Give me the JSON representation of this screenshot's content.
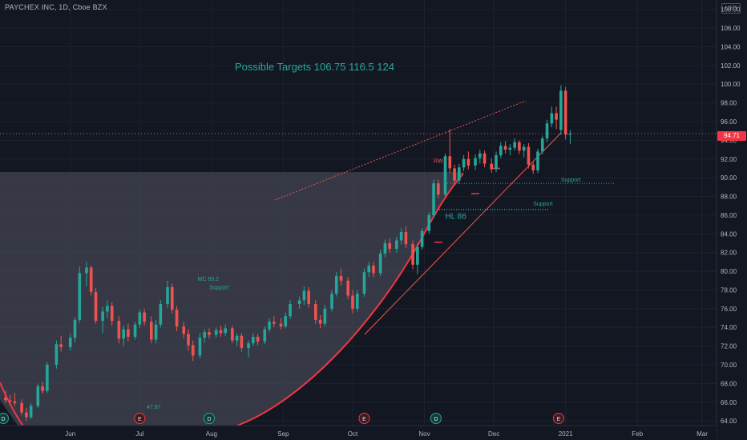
{
  "header": {
    "symbol_line": "PAYCHEX INC, 1D, Cboe BZX",
    "currency_label": "USD"
  },
  "last_price_label": "94.71",
  "colors": {
    "up": "#26a69a",
    "down": "#ef5350",
    "background": "#131722",
    "grid": "#1e222d",
    "shade": "#434651"
  },
  "chart_data": {
    "type": "candlestick",
    "y_axis": {
      "side": "right",
      "range": [
        63.5,
        109
      ],
      "ticks": [
        64,
        66,
        68,
        70,
        72,
        74,
        76,
        78,
        80,
        82,
        84,
        86,
        88,
        90,
        92,
        94,
        96,
        98,
        100,
        102,
        104,
        106,
        108
      ],
      "tick_labels": [
        "64.00",
        "66.00",
        "68.00",
        "70.00",
        "72.00",
        "74.00",
        "76.00",
        "78.00",
        "80.00",
        "82.00",
        "84.00",
        "86.00",
        "88.00",
        "90.00",
        "92.00",
        "94.00",
        "96.00",
        "98.00",
        "100.00",
        "102.00",
        "104.00",
        "106.00",
        "108.00"
      ]
    },
    "x_axis": {
      "labels": [
        {
          "label": "Jun",
          "date": "2020-06-01"
        },
        {
          "label": "Jul",
          "date": "2020-07-01"
        },
        {
          "label": "Aug",
          "date": "2020-08-01"
        },
        {
          "label": "Sep",
          "date": "2020-09-01"
        },
        {
          "label": "Oct",
          "date": "2020-10-01"
        },
        {
          "label": "Nov",
          "date": "2020-11-01"
        },
        {
          "label": "Dec",
          "date": "2020-12-01"
        },
        {
          "label": "2021",
          "date": "2021-01-01"
        },
        {
          "label": "Feb",
          "date": "2021-02-01"
        },
        {
          "label": "Mar",
          "date": "2021-03-01"
        }
      ],
      "range": [
        "2020-05-01",
        "2021-03-12"
      ]
    },
    "last_price": 94.71,
    "candles": [
      {
        "d": "2020-05-01",
        "o": 66.9,
        "h": 67.4,
        "l": 66.2,
        "c": 66.5
      },
      {
        "d": "2020-05-04",
        "o": 66.5,
        "h": 67.2,
        "l": 65.9,
        "c": 66.2
      },
      {
        "d": "2020-05-06",
        "o": 66.2,
        "h": 66.8,
        "l": 65.8,
        "c": 66.1
      },
      {
        "d": "2020-05-08",
        "o": 66.1,
        "h": 67.0,
        "l": 65.6,
        "c": 65.9
      },
      {
        "d": "2020-05-11",
        "o": 65.9,
        "h": 66.3,
        "l": 64.6,
        "c": 64.9
      },
      {
        "d": "2020-05-13",
        "o": 64.9,
        "h": 65.4,
        "l": 64.0,
        "c": 64.4
      },
      {
        "d": "2020-05-15",
        "o": 64.4,
        "h": 65.9,
        "l": 64.2,
        "c": 65.6
      },
      {
        "d": "2020-05-18",
        "o": 65.6,
        "h": 68.0,
        "l": 65.4,
        "c": 67.7
      },
      {
        "d": "2020-05-20",
        "o": 67.7,
        "h": 68.2,
        "l": 66.9,
        "c": 67.2
      },
      {
        "d": "2020-05-22",
        "o": 67.2,
        "h": 70.3,
        "l": 67.0,
        "c": 70.0
      },
      {
        "d": "2020-05-26",
        "o": 70.0,
        "h": 72.6,
        "l": 69.6,
        "c": 72.2
      },
      {
        "d": "2020-05-28",
        "o": 72.2,
        "h": 73.1,
        "l": 71.4,
        "c": 71.9
      },
      {
        "d": "2020-06-01",
        "o": 71.9,
        "h": 73.3,
        "l": 71.5,
        "c": 72.9
      },
      {
        "d": "2020-06-03",
        "o": 72.9,
        "h": 75.1,
        "l": 72.4,
        "c": 74.8
      },
      {
        "d": "2020-06-05",
        "o": 74.8,
        "h": 80.5,
        "l": 74.5,
        "c": 79.8
      },
      {
        "d": "2020-06-08",
        "o": 79.8,
        "h": 81.0,
        "l": 78.4,
        "c": 80.4
      },
      {
        "d": "2020-06-10",
        "o": 80.4,
        "h": 80.6,
        "l": 77.4,
        "c": 77.8
      },
      {
        "d": "2020-06-12",
        "o": 77.8,
        "h": 78.2,
        "l": 74.4,
        "c": 74.7
      },
      {
        "d": "2020-06-15",
        "o": 74.7,
        "h": 76.2,
        "l": 73.4,
        "c": 75.7
      },
      {
        "d": "2020-06-17",
        "o": 75.7,
        "h": 76.9,
        "l": 75.0,
        "c": 76.3
      },
      {
        "d": "2020-06-19",
        "o": 76.3,
        "h": 76.7,
        "l": 74.2,
        "c": 74.7
      },
      {
        "d": "2020-06-22",
        "o": 74.7,
        "h": 75.2,
        "l": 72.3,
        "c": 72.8
      },
      {
        "d": "2020-06-24",
        "o": 72.8,
        "h": 74.2,
        "l": 72.0,
        "c": 73.8
      },
      {
        "d": "2020-06-26",
        "o": 73.8,
        "h": 74.4,
        "l": 72.5,
        "c": 73.0
      },
      {
        "d": "2020-06-29",
        "o": 73.0,
        "h": 74.6,
        "l": 72.7,
        "c": 74.3
      },
      {
        "d": "2020-07-01",
        "o": 74.3,
        "h": 75.9,
        "l": 73.9,
        "c": 75.6
      },
      {
        "d": "2020-07-03",
        "o": 75.6,
        "h": 76.0,
        "l": 74.2,
        "c": 74.6
      },
      {
        "d": "2020-07-06",
        "o": 74.6,
        "h": 75.2,
        "l": 72.3,
        "c": 72.7
      },
      {
        "d": "2020-07-08",
        "o": 72.7,
        "h": 74.8,
        "l": 72.3,
        "c": 74.3
      },
      {
        "d": "2020-07-10",
        "o": 74.3,
        "h": 76.9,
        "l": 74.0,
        "c": 76.5
      },
      {
        "d": "2020-07-13",
        "o": 76.5,
        "h": 79.0,
        "l": 76.1,
        "c": 78.3
      },
      {
        "d": "2020-07-15",
        "o": 78.3,
        "h": 78.7,
        "l": 75.5,
        "c": 75.9
      },
      {
        "d": "2020-07-17",
        "o": 75.9,
        "h": 76.3,
        "l": 73.6,
        "c": 74.1
      },
      {
        "d": "2020-07-20",
        "o": 74.1,
        "h": 74.6,
        "l": 72.8,
        "c": 73.3
      },
      {
        "d": "2020-07-22",
        "o": 73.3,
        "h": 73.8,
        "l": 71.5,
        "c": 72.1
      },
      {
        "d": "2020-07-24",
        "o": 72.1,
        "h": 72.6,
        "l": 70.4,
        "c": 71.0
      },
      {
        "d": "2020-07-27",
        "o": 71.0,
        "h": 73.4,
        "l": 70.7,
        "c": 72.9
      },
      {
        "d": "2020-07-29",
        "o": 72.9,
        "h": 73.8,
        "l": 72.4,
        "c": 73.5
      },
      {
        "d": "2020-07-31",
        "o": 73.5,
        "h": 73.9,
        "l": 72.8,
        "c": 73.2
      },
      {
        "d": "2020-08-03",
        "o": 73.2,
        "h": 74.0,
        "l": 72.9,
        "c": 73.7
      },
      {
        "d": "2020-08-05",
        "o": 73.7,
        "h": 74.2,
        "l": 73.0,
        "c": 73.4
      },
      {
        "d": "2020-08-07",
        "o": 73.4,
        "h": 74.3,
        "l": 73.1,
        "c": 73.9
      },
      {
        "d": "2020-08-10",
        "o": 73.9,
        "h": 74.2,
        "l": 72.3,
        "c": 72.6
      },
      {
        "d": "2020-08-12",
        "o": 72.6,
        "h": 73.4,
        "l": 72.0,
        "c": 73.1
      },
      {
        "d": "2020-08-14",
        "o": 73.1,
        "h": 73.4,
        "l": 71.4,
        "c": 71.8
      },
      {
        "d": "2020-08-17",
        "o": 71.8,
        "h": 72.6,
        "l": 70.8,
        "c": 72.3
      },
      {
        "d": "2020-08-19",
        "o": 72.3,
        "h": 73.4,
        "l": 72.0,
        "c": 73.0
      },
      {
        "d": "2020-08-21",
        "o": 73.0,
        "h": 73.3,
        "l": 72.1,
        "c": 72.5
      },
      {
        "d": "2020-08-24",
        "o": 72.5,
        "h": 74.1,
        "l": 72.2,
        "c": 73.8
      },
      {
        "d": "2020-08-26",
        "o": 73.8,
        "h": 75.0,
        "l": 73.5,
        "c": 74.6
      },
      {
        "d": "2020-08-28",
        "o": 74.6,
        "h": 75.2,
        "l": 74.0,
        "c": 74.4
      },
      {
        "d": "2020-08-31",
        "o": 74.4,
        "h": 75.0,
        "l": 73.8,
        "c": 74.1
      },
      {
        "d": "2020-09-02",
        "o": 74.1,
        "h": 75.6,
        "l": 73.9,
        "c": 75.2
      },
      {
        "d": "2020-09-04",
        "o": 75.2,
        "h": 76.9,
        "l": 74.9,
        "c": 76.5
      },
      {
        "d": "2020-09-08",
        "o": 76.5,
        "h": 77.3,
        "l": 76.0,
        "c": 76.9
      },
      {
        "d": "2020-09-10",
        "o": 76.9,
        "h": 78.4,
        "l": 76.4,
        "c": 77.9
      },
      {
        "d": "2020-09-12",
        "o": 77.9,
        "h": 78.3,
        "l": 76.1,
        "c": 76.5
      },
      {
        "d": "2020-09-15",
        "o": 76.5,
        "h": 76.9,
        "l": 74.4,
        "c": 74.8
      },
      {
        "d": "2020-09-17",
        "o": 74.8,
        "h": 75.3,
        "l": 73.9,
        "c": 74.4
      },
      {
        "d": "2020-09-19",
        "o": 74.4,
        "h": 76.4,
        "l": 74.1,
        "c": 76.0
      },
      {
        "d": "2020-09-22",
        "o": 76.0,
        "h": 78.0,
        "l": 75.7,
        "c": 77.6
      },
      {
        "d": "2020-09-24",
        "o": 77.6,
        "h": 79.9,
        "l": 77.3,
        "c": 79.5
      },
      {
        "d": "2020-09-26",
        "o": 79.5,
        "h": 80.3,
        "l": 78.5,
        "c": 79.0
      },
      {
        "d": "2020-09-29",
        "o": 79.0,
        "h": 79.4,
        "l": 77.0,
        "c": 77.4
      },
      {
        "d": "2020-10-01",
        "o": 77.4,
        "h": 78.0,
        "l": 75.5,
        "c": 76.0
      },
      {
        "d": "2020-10-03",
        "o": 76.0,
        "h": 78.0,
        "l": 75.7,
        "c": 77.6
      },
      {
        "d": "2020-10-06",
        "o": 77.6,
        "h": 80.3,
        "l": 77.3,
        "c": 79.9
      },
      {
        "d": "2020-10-08",
        "o": 79.9,
        "h": 81.0,
        "l": 79.4,
        "c": 80.6
      },
      {
        "d": "2020-10-10",
        "o": 80.6,
        "h": 81.0,
        "l": 79.4,
        "c": 79.8
      },
      {
        "d": "2020-10-13",
        "o": 79.8,
        "h": 82.3,
        "l": 79.5,
        "c": 81.9
      },
      {
        "d": "2020-10-15",
        "o": 81.9,
        "h": 83.4,
        "l": 81.5,
        "c": 83.0
      },
      {
        "d": "2020-10-17",
        "o": 83.0,
        "h": 83.5,
        "l": 82.0,
        "c": 82.4
      },
      {
        "d": "2020-10-20",
        "o": 82.4,
        "h": 83.7,
        "l": 82.0,
        "c": 83.3
      },
      {
        "d": "2020-10-22",
        "o": 83.3,
        "h": 84.6,
        "l": 82.9,
        "c": 84.2
      },
      {
        "d": "2020-10-24",
        "o": 84.2,
        "h": 84.8,
        "l": 82.5,
        "c": 82.9
      },
      {
        "d": "2020-10-27",
        "o": 82.9,
        "h": 83.3,
        "l": 80.2,
        "c": 80.7
      },
      {
        "d": "2020-10-29",
        "o": 80.7,
        "h": 83.0,
        "l": 79.7,
        "c": 82.6
      },
      {
        "d": "2020-10-31",
        "o": 82.6,
        "h": 84.6,
        "l": 82.3,
        "c": 84.3
      },
      {
        "d": "2020-11-03",
        "o": 84.3,
        "h": 86.3,
        "l": 84.0,
        "c": 86.0
      },
      {
        "d": "2020-11-05",
        "o": 86.0,
        "h": 89.8,
        "l": 85.7,
        "c": 89.4
      },
      {
        "d": "2020-11-07",
        "o": 89.4,
        "h": 89.8,
        "l": 87.8,
        "c": 88.2
      },
      {
        "d": "2020-11-10",
        "o": 88.2,
        "h": 92.6,
        "l": 88.0,
        "c": 92.3
      },
      {
        "d": "2020-11-12",
        "o": 92.3,
        "h": 95.2,
        "l": 90.5,
        "c": 91.0
      },
      {
        "d": "2020-11-14",
        "o": 91.0,
        "h": 91.4,
        "l": 89.2,
        "c": 89.7
      },
      {
        "d": "2020-11-16",
        "o": 89.7,
        "h": 91.5,
        "l": 89.3,
        "c": 91.1
      },
      {
        "d": "2020-11-18",
        "o": 91.1,
        "h": 92.4,
        "l": 90.7,
        "c": 92.0
      },
      {
        "d": "2020-11-20",
        "o": 92.0,
        "h": 92.8,
        "l": 90.9,
        "c": 91.3
      },
      {
        "d": "2020-11-23",
        "o": 91.3,
        "h": 92.5,
        "l": 90.8,
        "c": 92.1
      },
      {
        "d": "2020-11-25",
        "o": 92.1,
        "h": 93.0,
        "l": 91.5,
        "c": 92.6
      },
      {
        "d": "2020-11-27",
        "o": 92.6,
        "h": 92.9,
        "l": 91.1,
        "c": 91.5
      },
      {
        "d": "2020-11-30",
        "o": 91.5,
        "h": 92.1,
        "l": 90.5,
        "c": 90.9
      },
      {
        "d": "2020-12-02",
        "o": 90.9,
        "h": 92.8,
        "l": 90.6,
        "c": 92.4
      },
      {
        "d": "2020-12-04",
        "o": 92.4,
        "h": 93.8,
        "l": 92.1,
        "c": 93.4
      },
      {
        "d": "2020-12-06",
        "o": 93.4,
        "h": 93.9,
        "l": 92.6,
        "c": 93.0
      },
      {
        "d": "2020-12-08",
        "o": 93.0,
        "h": 93.6,
        "l": 92.4,
        "c": 93.2
      },
      {
        "d": "2020-12-10",
        "o": 93.2,
        "h": 94.2,
        "l": 92.9,
        "c": 93.8
      },
      {
        "d": "2020-12-12",
        "o": 93.8,
        "h": 94.0,
        "l": 92.5,
        "c": 92.9
      },
      {
        "d": "2020-12-14",
        "o": 92.9,
        "h": 93.6,
        "l": 92.2,
        "c": 93.3
      },
      {
        "d": "2020-12-16",
        "o": 93.3,
        "h": 93.7,
        "l": 91.0,
        "c": 91.4
      },
      {
        "d": "2020-12-18",
        "o": 91.4,
        "h": 91.7,
        "l": 90.4,
        "c": 90.8
      },
      {
        "d": "2020-12-20",
        "o": 90.8,
        "h": 93.1,
        "l": 90.5,
        "c": 92.8
      },
      {
        "d": "2020-12-22",
        "o": 92.8,
        "h": 94.5,
        "l": 92.5,
        "c": 94.2
      },
      {
        "d": "2020-12-24",
        "o": 94.2,
        "h": 96.2,
        "l": 93.8,
        "c": 95.8
      },
      {
        "d": "2020-12-26",
        "o": 95.8,
        "h": 97.6,
        "l": 95.4,
        "c": 96.9
      },
      {
        "d": "2020-12-28",
        "o": 96.9,
        "h": 97.6,
        "l": 95.2,
        "c": 96.2
      },
      {
        "d": "2020-12-30",
        "o": 95.1,
        "h": 99.9,
        "l": 94.6,
        "c": 99.3
      },
      {
        "d": "2021-01-01",
        "o": 99.3,
        "h": 99.7,
        "l": 94.1,
        "c": 94.6
      },
      {
        "d": "2021-01-03",
        "o": 94.6,
        "h": 95.1,
        "l": 93.6,
        "c": 94.71
      }
    ],
    "annotations": {
      "title_text": "Possible Targets  106.75    116.5    124",
      "labels": [
        {
          "text": "RW",
          "x": "2020-11-05",
          "y": 91.6,
          "color": "#ef5350"
        },
        {
          "text": "HL   86",
          "x": "2020-11-10",
          "y": 85.6,
          "color": "#26a69a"
        },
        {
          "text": "Support",
          "x": "2020-12-30",
          "y": 89.6,
          "color": "#26a69a"
        },
        {
          "text": "Support",
          "x": "2020-12-18",
          "y": 87.0,
          "color": "#26a69a"
        },
        {
          "text": "MC 69.2",
          "x": "2020-07-26",
          "y": 79.0,
          "color": "#26a69a"
        },
        {
          "text": "Support",
          "x": "2020-07-31",
          "y": 78.1,
          "color": "#26a69a"
        },
        {
          "text": "47.87",
          "x": "2020-07-04",
          "y": 65.3,
          "color": "#26a69a"
        }
      ],
      "events": [
        {
          "letter": "D",
          "x": "2020-05-03"
        },
        {
          "letter": "E",
          "x": "2020-07-01"
        },
        {
          "letter": "D",
          "x": "2020-07-31"
        },
        {
          "letter": "E",
          "x": "2020-10-06"
        },
        {
          "letter": "D",
          "x": "2020-11-06"
        },
        {
          "letter": "E",
          "x": "2020-12-29"
        }
      ]
    }
  }
}
